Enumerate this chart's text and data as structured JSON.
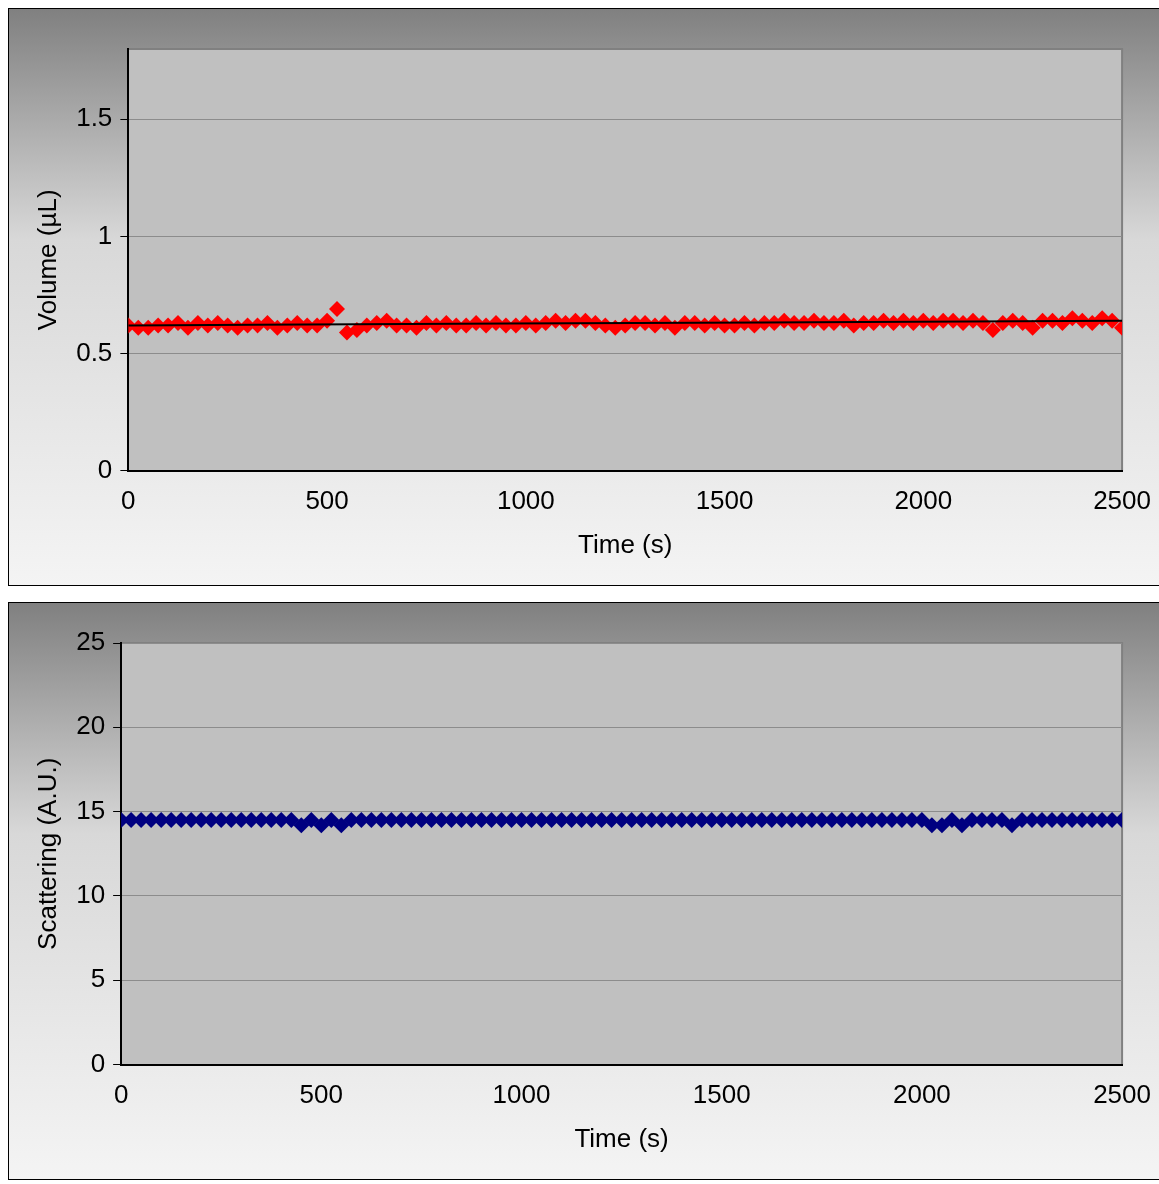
{
  "chart_data": [
    {
      "type": "scatter",
      "xlabel": "Time (s)",
      "ylabel": "Volume (µL)",
      "x": [
        0,
        25,
        50,
        75,
        100,
        125,
        150,
        175,
        200,
        225,
        250,
        275,
        300,
        325,
        350,
        375,
        400,
        425,
        450,
        475,
        500,
        525,
        550,
        575,
        600,
        625,
        650,
        675,
        700,
        725,
        750,
        775,
        800,
        825,
        850,
        875,
        900,
        925,
        950,
        975,
        1000,
        1025,
        1050,
        1075,
        1100,
        1125,
        1150,
        1175,
        1200,
        1225,
        1250,
        1275,
        1300,
        1325,
        1350,
        1375,
        1400,
        1425,
        1450,
        1475,
        1500,
        1525,
        1550,
        1575,
        1600,
        1625,
        1650,
        1675,
        1700,
        1725,
        1750,
        1775,
        1800,
        1825,
        1850,
        1875,
        1900,
        1925,
        1950,
        1975,
        2000,
        2025,
        2050,
        2075,
        2100,
        2125,
        2150,
        2175,
        2200,
        2225,
        2250,
        2275,
        2300,
        2325,
        2350,
        2375,
        2400,
        2425,
        2450,
        2475,
        2500
      ],
      "xlim": [
        0,
        2500
      ],
      "xticks": [
        0,
        500,
        1000,
        1500,
        2000,
        2500
      ],
      "ylim": [
        0,
        1.8
      ],
      "yticks": [
        0,
        0.5,
        1,
        1.5
      ],
      "grid": "y",
      "legend": false,
      "marker": "diamond",
      "series": [
        {
          "color": "#ff0000",
          "values": [
            0.62,
            0.61,
            0.61,
            0.62,
            0.62,
            0.63,
            0.61,
            0.63,
            0.62,
            0.63,
            0.62,
            0.61,
            0.62,
            0.62,
            0.63,
            0.61,
            0.62,
            0.63,
            0.62,
            0.62,
            0.64,
            0.69,
            0.59,
            0.6,
            0.62,
            0.63,
            0.64,
            0.62,
            0.62,
            0.61,
            0.63,
            0.62,
            0.63,
            0.62,
            0.62,
            0.63,
            0.62,
            0.63,
            0.62,
            0.62,
            0.63,
            0.62,
            0.63,
            0.64,
            0.63,
            0.64,
            0.64,
            0.63,
            0.62,
            0.61,
            0.62,
            0.63,
            0.63,
            0.62,
            0.63,
            0.61,
            0.63,
            0.63,
            0.62,
            0.63,
            0.62,
            0.62,
            0.63,
            0.62,
            0.63,
            0.63,
            0.64,
            0.63,
            0.63,
            0.64,
            0.63,
            0.63,
            0.64,
            0.62,
            0.63,
            0.63,
            0.64,
            0.63,
            0.64,
            0.63,
            0.64,
            0.63,
            0.64,
            0.64,
            0.63,
            0.64,
            0.63,
            0.6,
            0.63,
            0.64,
            0.63,
            0.61,
            0.64,
            0.64,
            0.63,
            0.65,
            0.64,
            0.63,
            0.65,
            0.64,
            0.61
          ]
        },
        {
          "type": "line",
          "color": "#000000",
          "x": [
            0,
            2500
          ],
          "values": [
            0.62,
            0.64
          ],
          "marker": "none"
        }
      ]
    },
    {
      "type": "scatter",
      "xlabel": "Time (s)",
      "ylabel": "Scattering (A.U.)",
      "x": [
        0,
        25,
        50,
        75,
        100,
        125,
        150,
        175,
        200,
        225,
        250,
        275,
        300,
        325,
        350,
        375,
        400,
        425,
        450,
        475,
        500,
        525,
        550,
        575,
        600,
        625,
        650,
        675,
        700,
        725,
        750,
        775,
        800,
        825,
        850,
        875,
        900,
        925,
        950,
        975,
        1000,
        1025,
        1050,
        1075,
        1100,
        1125,
        1150,
        1175,
        1200,
        1225,
        1250,
        1275,
        1300,
        1325,
        1350,
        1375,
        1400,
        1425,
        1450,
        1475,
        1500,
        1525,
        1550,
        1575,
        1600,
        1625,
        1650,
        1675,
        1700,
        1725,
        1750,
        1775,
        1800,
        1825,
        1850,
        1875,
        1900,
        1925,
        1950,
        1975,
        2000,
        2025,
        2050,
        2075,
        2100,
        2125,
        2150,
        2175,
        2200,
        2225,
        2250,
        2275,
        2300,
        2325,
        2350,
        2375,
        2400,
        2425,
        2450,
        2475,
        2500
      ],
      "xlim": [
        0,
        2500
      ],
      "xticks": [
        0,
        500,
        1000,
        1500,
        2000,
        2500
      ],
      "ylim": [
        0,
        25
      ],
      "yticks": [
        0,
        5,
        10,
        15,
        20,
        25
      ],
      "grid": "y",
      "legend": false,
      "marker": "diamond",
      "series": [
        {
          "color": "#000080",
          "values": [
            14.5,
            14.5,
            14.5,
            14.5,
            14.5,
            14.5,
            14.5,
            14.5,
            14.5,
            14.5,
            14.5,
            14.5,
            14.5,
            14.5,
            14.5,
            14.5,
            14.5,
            14.5,
            14.2,
            14.5,
            14.2,
            14.5,
            14.2,
            14.5,
            14.5,
            14.5,
            14.5,
            14.5,
            14.5,
            14.5,
            14.5,
            14.5,
            14.5,
            14.5,
            14.5,
            14.5,
            14.5,
            14.5,
            14.5,
            14.5,
            14.5,
            14.5,
            14.5,
            14.5,
            14.5,
            14.5,
            14.5,
            14.5,
            14.5,
            14.5,
            14.5,
            14.5,
            14.5,
            14.5,
            14.5,
            14.5,
            14.5,
            14.5,
            14.5,
            14.5,
            14.5,
            14.5,
            14.5,
            14.5,
            14.5,
            14.5,
            14.5,
            14.5,
            14.5,
            14.5,
            14.5,
            14.5,
            14.5,
            14.5,
            14.5,
            14.5,
            14.5,
            14.5,
            14.5,
            14.5,
            14.5,
            14.2,
            14.2,
            14.5,
            14.2,
            14.5,
            14.5,
            14.5,
            14.5,
            14.2,
            14.5,
            14.5,
            14.5,
            14.5,
            14.5,
            14.5,
            14.5,
            14.5,
            14.5,
            14.5,
            14.5
          ]
        }
      ]
    }
  ]
}
